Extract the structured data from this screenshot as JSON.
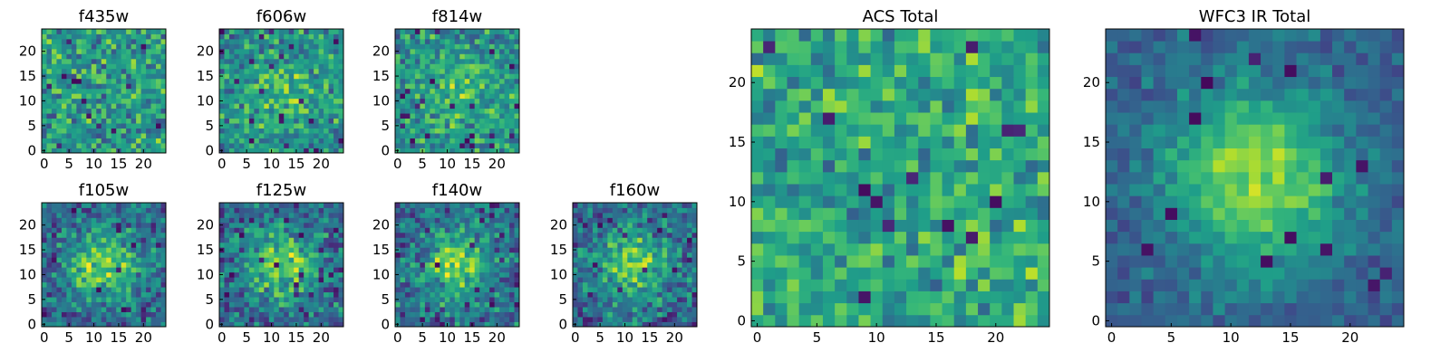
{
  "chart_data": {
    "type": "heatmap",
    "colormap": "viridis",
    "grid": false,
    "grid_size": [
      25,
      25
    ],
    "value_range": [
      0,
      1
    ],
    "panels": [
      {
        "title": "f435w",
        "xticks": [
          "0",
          "5",
          "10",
          "15",
          "20"
        ],
        "yticks": [
          "0",
          "5",
          "10",
          "15",
          "20"
        ],
        "xlim": [
          0,
          24
        ],
        "ylim": [
          0,
          24
        ],
        "pattern": "noise",
        "seed": 11
      },
      {
        "title": "f606w",
        "xticks": [
          "0",
          "5",
          "10",
          "15",
          "20"
        ],
        "yticks": [
          "0",
          "5",
          "10",
          "15",
          "20"
        ],
        "xlim": [
          0,
          24
        ],
        "ylim": [
          0,
          24
        ],
        "pattern": "noise-center",
        "seed": 23
      },
      {
        "title": "f814w",
        "xticks": [
          "0",
          "5",
          "10",
          "15",
          "20"
        ],
        "yticks": [
          "0",
          "5",
          "10",
          "15",
          "20"
        ],
        "xlim": [
          0,
          24
        ],
        "ylim": [
          0,
          24
        ],
        "pattern": "noise-center",
        "seed": 37
      },
      {
        "title": "f105w",
        "xticks": [
          "0",
          "5",
          "10",
          "15",
          "20"
        ],
        "yticks": [
          "0",
          "5",
          "10",
          "15",
          "20"
        ],
        "xlim": [
          0,
          24
        ],
        "ylim": [
          0,
          24
        ],
        "pattern": "blob",
        "seed": 41
      },
      {
        "title": "f125w",
        "xticks": [
          "0",
          "5",
          "10",
          "15",
          "20"
        ],
        "yticks": [
          "0",
          "5",
          "10",
          "15",
          "20"
        ],
        "xlim": [
          0,
          24
        ],
        "ylim": [
          0,
          24
        ],
        "pattern": "blob",
        "seed": 53
      },
      {
        "title": "f140w",
        "xticks": [
          "0",
          "5",
          "10",
          "15",
          "20"
        ],
        "yticks": [
          "0",
          "5",
          "10",
          "15",
          "20"
        ],
        "xlim": [
          0,
          24
        ],
        "ylim": [
          0,
          24
        ],
        "pattern": "blob",
        "seed": 67
      },
      {
        "title": "f160w",
        "xticks": [
          "0",
          "5",
          "10",
          "15",
          "20"
        ],
        "yticks": [
          "0",
          "5",
          "10",
          "15",
          "20"
        ],
        "xlim": [
          0,
          24
        ],
        "ylim": [
          0,
          24
        ],
        "pattern": "blob",
        "seed": 79
      },
      {
        "title": "ACS Total",
        "xticks": [
          "0",
          "5",
          "10",
          "15",
          "20"
        ],
        "yticks": [
          "0",
          "5",
          "10",
          "15",
          "20"
        ],
        "xlim": [
          0,
          24
        ],
        "ylim": [
          0,
          24
        ],
        "pattern": "acs",
        "seed": 83
      },
      {
        "title": "WFC3 IR Total",
        "xticks": [
          "0",
          "5",
          "10",
          "15",
          "20"
        ],
        "yticks": [
          "0",
          "5",
          "10",
          "15",
          "20"
        ],
        "xlim": [
          0,
          24
        ],
        "ylim": [
          0,
          24
        ],
        "pattern": "smooth-blob",
        "seed": 97
      }
    ]
  }
}
